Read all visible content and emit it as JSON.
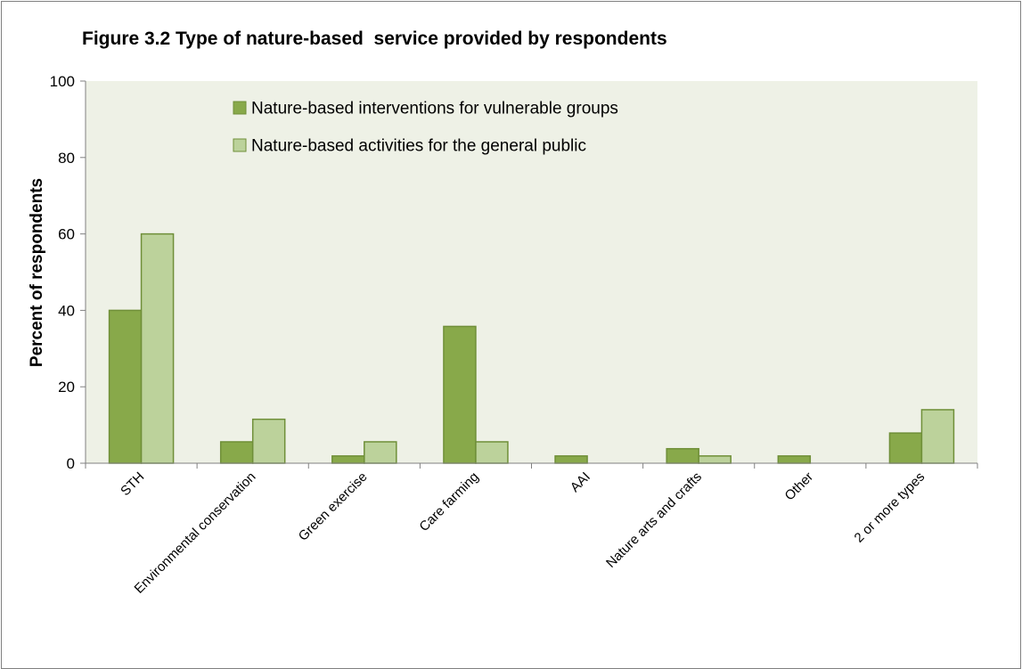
{
  "chart_data": {
    "type": "bar",
    "title": "Figure 3.2 Type of nature-based  service provided by respondents",
    "xlabel": "",
    "ylabel": "Percent of respondents",
    "ylim": [
      0,
      100
    ],
    "yticks": [
      0,
      20,
      40,
      60,
      80,
      100
    ],
    "grid": false,
    "legend_position": "top-center",
    "categories": [
      "STH",
      "Environmental conservation",
      "Green exercise",
      "Care farming",
      "AAI",
      "Nature arts and crafts",
      "Other",
      "2 or more types"
    ],
    "series": [
      {
        "name": "Nature-based interventions for vulnerable groups",
        "color": "#88a94a",
        "values": [
          40,
          5.6,
          1.9,
          35.8,
          1.9,
          3.8,
          1.9,
          7.9
        ]
      },
      {
        "name": "Nature-based activities for the general public",
        "color": "#bcd29b",
        "values": [
          60,
          11.5,
          5.6,
          5.6,
          0,
          1.9,
          0,
          14
        ]
      }
    ],
    "colors": {
      "plot_background": "#eef1e6",
      "bar_border": "#6f8f38",
      "axis": "#808080",
      "frame": "#808080"
    }
  }
}
